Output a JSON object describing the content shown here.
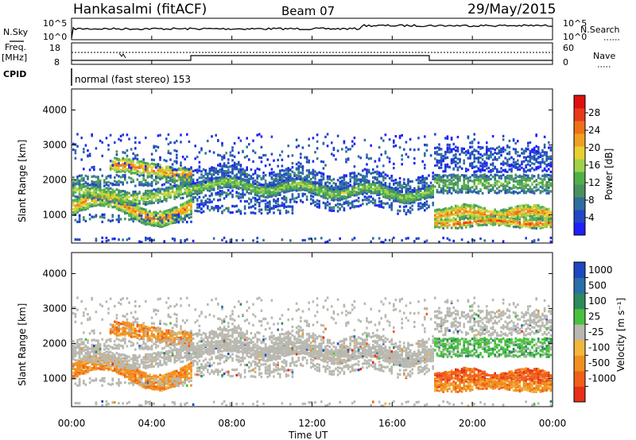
{
  "header": {
    "station": "Hankasalmi (fitACF)",
    "beam": "Beam 07",
    "date": "29/May/2015"
  },
  "top_panels": {
    "nsky_label": "N.Sky",
    "nsky_ticks": [
      "10^5",
      "10^0"
    ],
    "nsearch_label": "N.Search",
    "freq_label_1": "Freq.",
    "freq_label_2": "[MHz]",
    "freq_ticks": [
      "18",
      "8"
    ],
    "nave_ticks": [
      "60",
      "0"
    ],
    "nave_label": "Nave",
    "cpid_label": "CPID",
    "cpid_text": "normal (fast stereo) 153"
  },
  "colors": {
    "power_scale": [
      "#1f1fff",
      "#2147c7",
      "#2e6f9e",
      "#4a9060",
      "#4fb04a",
      "#9fd24a",
      "#e8d030",
      "#f0a020",
      "#f07018",
      "#e83a1a",
      "#e01010"
    ],
    "velocity_scale": [
      "#1d48c0",
      "#2a6fa8",
      "#2e8a5e",
      "#4ac040",
      "#b8b8b0",
      "#f2b63a",
      "#f09020",
      "#f06018",
      "#e83018"
    ]
  },
  "chart_data": [
    {
      "type": "heatmap",
      "title": "Power",
      "ylabel": "Slant Range [km]",
      "xlabel": "Time UT",
      "x_ticks": [
        "00:00",
        "04:00",
        "08:00",
        "12:00",
        "16:00",
        "20:00",
        "00:00"
      ],
      "y_ticks": [
        1000,
        2000,
        3000,
        4000
      ],
      "ylim": [
        200,
        4600
      ],
      "xlim_hours": [
        0,
        24
      ],
      "colorbar_label": "Power [dB]",
      "colorbar_ticks": [
        4,
        8,
        12,
        16,
        20,
        24,
        28
      ],
      "colorbar_range": [
        0,
        32
      ]
    },
    {
      "type": "heatmap",
      "title": "Velocity",
      "ylabel": "Slant Range [km]",
      "xlabel": "Time UT",
      "x_ticks": [
        "00:00",
        "04:00",
        "08:00",
        "12:00",
        "16:00",
        "20:00",
        "00:00"
      ],
      "y_ticks": [
        1000,
        2000,
        3000,
        4000
      ],
      "ylim": [
        200,
        4600
      ],
      "xlim_hours": [
        0,
        24
      ],
      "colorbar_label": "Velocity [m s⁻¹]",
      "colorbar_ticks": [
        "1000",
        "500",
        "100",
        "25",
        "-25",
        "-100",
        "-500",
        "-1000"
      ]
    }
  ],
  "time_axis_label": "Time UT"
}
